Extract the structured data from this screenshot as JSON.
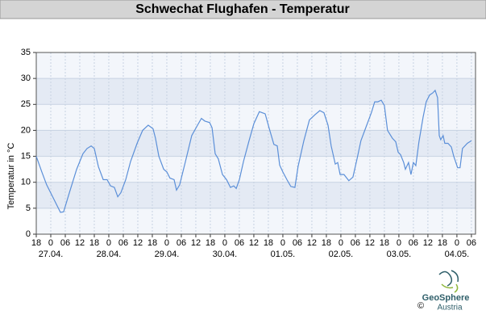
{
  "chart_data": {
    "type": "line",
    "title": "Schwechat Flughafen - Temperatur",
    "ylabel": "Temperatur in °C",
    "series": [
      {
        "name": "Temperatur",
        "color": "#5b8fd8",
        "x": [
          0,
          2.3,
          4.3,
          7,
          10,
          11.3,
          13.7,
          16.7,
          19.3,
          21,
          22.7,
          24,
          25.7,
          27.7,
          29.3,
          30.7,
          32.3,
          33.7,
          35,
          37,
          39,
          41.7,
          44,
          46.3,
          48.3,
          49.3,
          50.7,
          52.7,
          54,
          55.3,
          57,
          58,
          59.3,
          61.7,
          64.3,
          66.7,
          68.3,
          69.7,
          71.7,
          72.7,
          74,
          75.3,
          77,
          78.7,
          80.3,
          81.7,
          82.7,
          84,
          85.7,
          88,
          90,
          92.3,
          94.7,
          96.3,
          98.3,
          99.7,
          100.7,
          102,
          103.7,
          105.3,
          107,
          108.3,
          110.7,
          113,
          115.3,
          117.3,
          119,
          120.7,
          122,
          123.7,
          124.7,
          125.7,
          127.3,
          129.3,
          131,
          132.7,
          134.3,
          136.7,
          138.7,
          140,
          141.3,
          142.7,
          144,
          145.3,
          147.3,
          148.7,
          149.7,
          150.7,
          152,
          152.7,
          154,
          155,
          156,
          157,
          158.3,
          160,
          161.3,
          162.7,
          164,
          165,
          166,
          166.7,
          167.3,
          168.3,
          169,
          170.3,
          171.7,
          172.7,
          174.3,
          175.3,
          176.3,
          178.3,
          180
        ],
        "values": [
          15,
          12,
          9.5,
          7,
          4.2,
          4.3,
          8,
          12.5,
          15.5,
          16.5,
          17,
          16.5,
          13,
          10.5,
          10.5,
          9.3,
          9,
          7.2,
          8,
          10.5,
          14,
          17.5,
          20,
          21,
          20.3,
          18.5,
          15,
          12.5,
          12,
          10.8,
          10.5,
          8.5,
          9.5,
          14,
          19,
          21,
          22.3,
          21.8,
          21.5,
          20.5,
          15.5,
          14.5,
          11.5,
          10.5,
          9,
          9.3,
          8.8,
          10.5,
          14,
          18,
          21.3,
          23.6,
          23.2,
          20.5,
          17.3,
          17,
          13.3,
          12,
          10.5,
          9.2,
          9,
          13,
          18,
          22,
          23,
          23.8,
          23.4,
          21,
          17,
          13.5,
          13.8,
          11.5,
          11.5,
          10.3,
          11,
          14.5,
          18,
          21,
          23.5,
          25.5,
          25.5,
          25.8,
          24.8,
          20,
          18.5,
          17.8,
          15.8,
          15.3,
          13.8,
          12.5,
          13.8,
          11.5,
          13.8,
          13.2,
          17.8,
          22.5,
          25.5,
          26.8,
          27.2,
          27.7,
          26.3,
          19,
          18.2,
          19,
          17.5,
          17.5,
          16.8,
          15,
          12.8,
          12.8,
          16.5,
          17.5,
          18
        ]
      }
    ],
    "xlim": [
      0,
      181.7
    ],
    "ylim": [
      0,
      35
    ],
    "yticks": [
      0,
      5,
      10,
      15,
      20,
      25,
      30,
      35
    ],
    "xticks": [
      {
        "value": 0,
        "label": "18"
      },
      {
        "value": 6,
        "label": "0"
      },
      {
        "value": 12,
        "label": "06"
      },
      {
        "value": 18,
        "label": "12"
      },
      {
        "value": 24,
        "label": "18"
      },
      {
        "value": 30,
        "label": "0"
      },
      {
        "value": 36,
        "label": "06"
      },
      {
        "value": 42,
        "label": "12"
      },
      {
        "value": 48,
        "label": "18"
      },
      {
        "value": 54,
        "label": "0"
      },
      {
        "value": 60,
        "label": "06"
      },
      {
        "value": 66,
        "label": "12"
      },
      {
        "value": 72,
        "label": "18"
      },
      {
        "value": 78,
        "label": "0"
      },
      {
        "value": 84,
        "label": "06"
      },
      {
        "value": 90,
        "label": "12"
      },
      {
        "value": 96,
        "label": "18"
      },
      {
        "value": 102,
        "label": "0"
      },
      {
        "value": 108,
        "label": "06"
      },
      {
        "value": 114,
        "label": "12"
      },
      {
        "value": 120,
        "label": "18"
      },
      {
        "value": 126,
        "label": "0"
      },
      {
        "value": 132,
        "label": "06"
      },
      {
        "value": 138,
        "label": "12"
      },
      {
        "value": 144,
        "label": "18"
      },
      {
        "value": 150,
        "label": "0"
      },
      {
        "value": 156,
        "label": "06"
      },
      {
        "value": 162,
        "label": "12"
      },
      {
        "value": 168,
        "label": "18"
      },
      {
        "value": 174,
        "label": "0"
      },
      {
        "value": 180,
        "label": "06"
      }
    ],
    "date_labels": [
      {
        "value": 6,
        "label": "27.04."
      },
      {
        "value": 30,
        "label": "28.04."
      },
      {
        "value": 54,
        "label": "29.04."
      },
      {
        "value": 78,
        "label": "30.04."
      },
      {
        "value": 102,
        "label": "01.05."
      },
      {
        "value": 126,
        "label": "02.05."
      },
      {
        "value": 150,
        "label": "03.05."
      },
      {
        "value": 174,
        "label": "04.05."
      }
    ],
    "grid": true,
    "band_colors": [
      "#f3f6fb",
      "#e4eaf4"
    ],
    "logo": {
      "name": "GeoSphere",
      "sub": "Austria",
      "copyright": "©"
    }
  }
}
